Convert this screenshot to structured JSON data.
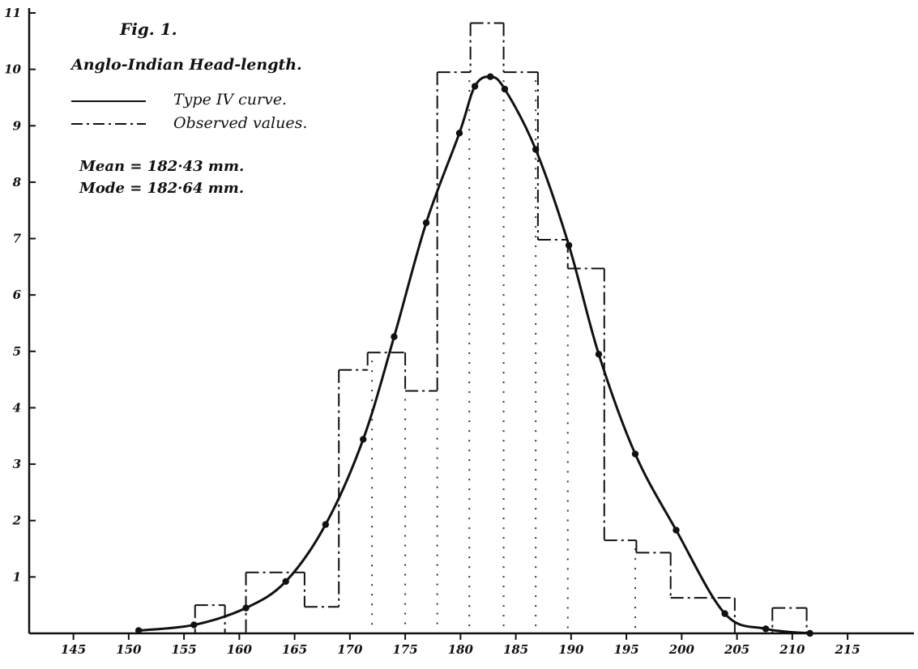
{
  "chart_data": {
    "type": "bar",
    "title": "Fig. 1.",
    "subtitle": "Anglo-Indian Head-length.",
    "xlabel": "",
    "ylabel": "",
    "xlim": [
      141,
      221
    ],
    "ylim": [
      0,
      11
    ],
    "x_ticks": [
      "145",
      "150",
      "155",
      "160",
      "165",
      "170",
      "175",
      "180",
      "185",
      "190",
      "195",
      "200",
      "205",
      "210",
      "215"
    ],
    "y_ticks": [
      "1",
      "2",
      "3",
      "4",
      "5",
      "6",
      "7",
      "8",
      "9",
      "10",
      "11"
    ],
    "grid": false,
    "legend": [
      {
        "label": "Type IV curve.",
        "style": "solid"
      },
      {
        "label": "Observed values.",
        "style": "dash-dot"
      }
    ],
    "annotations": {
      "mean": "Mean = 182·43 mm.",
      "mode": "Mode = 182·64 mm."
    },
    "series": [
      {
        "style": "dash-dot-histogram",
        "bins": [
          {
            "x0": 156.0,
            "x1": 158.7,
            "y": 0.5
          },
          {
            "x0": 158.7,
            "x1": 160.6,
            "y": 0.0
          },
          {
            "x0": 160.6,
            "x1": 165.9,
            "y": 1.08
          },
          {
            "x0": 165.9,
            "x1": 169.0,
            "y": 0.47
          },
          {
            "x0": 169.0,
            "x1": 171.6,
            "y": 4.67
          },
          {
            "x0": 171.6,
            "x1": 175.0,
            "y": 4.98
          },
          {
            "x0": 175.0,
            "x1": 177.9,
            "y": 4.3
          },
          {
            "x0": 177.9,
            "x1": 180.9,
            "y": 9.95
          },
          {
            "x0": 180.9,
            "x1": 183.9,
            "y": 10.82
          },
          {
            "x0": 183.9,
            "x1": 187.0,
            "y": 9.95
          },
          {
            "x0": 187.0,
            "x1": 189.7,
            "y": 6.98
          },
          {
            "x0": 189.7,
            "x1": 193.0,
            "y": 6.47
          },
          {
            "x0": 193.0,
            "x1": 195.9,
            "y": 1.65
          },
          {
            "x0": 195.9,
            "x1": 199.0,
            "y": 1.43
          },
          {
            "x0": 199.0,
            "x1": 204.8,
            "y": 0.63
          },
          {
            "x0": 204.8,
            "x1": 208.2,
            "y": 0.0
          },
          {
            "x0": 208.2,
            "x1": 211.3,
            "y": 0.45
          }
        ]
      },
      {
        "style": "solid-curve",
        "x": [
          150.9,
          155.9,
          160.6,
          164.2,
          167.8,
          171.2,
          174.0,
          176.9,
          179.9,
          181.3,
          182.7,
          184.0,
          186.8,
          189.8,
          192.5,
          195.8,
          199.5,
          203.9,
          207.6,
          211.6
        ],
        "y": [
          0.05,
          0.15,
          0.45,
          0.92,
          1.93,
          3.44,
          5.26,
          7.28,
          8.87,
          9.7,
          9.87,
          9.65,
          8.58,
          6.88,
          4.95,
          3.18,
          1.83,
          0.35,
          0.08,
          0.0
        ]
      }
    ],
    "dotted_verticals": [
      172.0,
      175.0,
      177.9,
      180.8,
      183.9,
      186.8,
      189.7,
      195.8
    ]
  }
}
